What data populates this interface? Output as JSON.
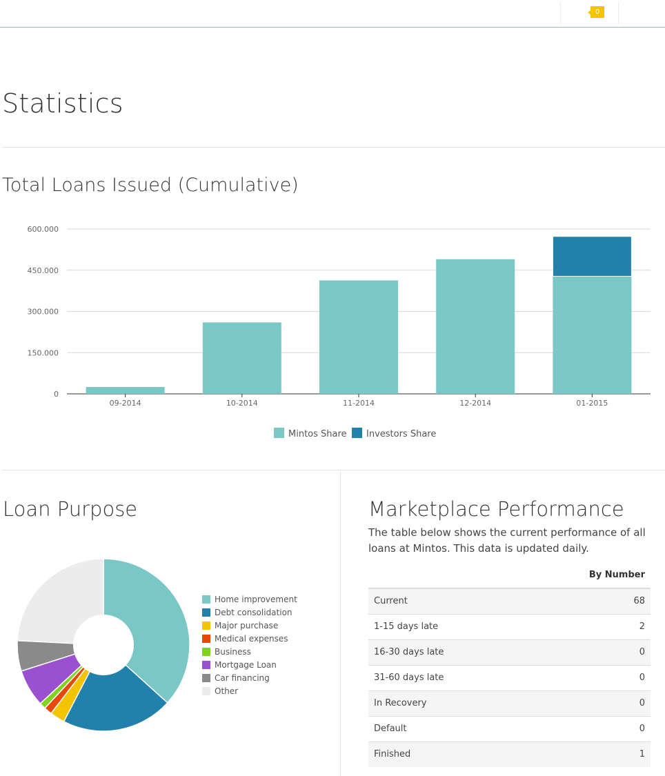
{
  "header": {
    "notification_count": "0"
  },
  "page_title": "Statistics",
  "loans_chart": {
    "title": "Total Loans Issued (Cumulative)",
    "legend": [
      {
        "label": "Mintos Share",
        "color": "#79c8c6"
      },
      {
        "label": "Investors Share",
        "color": "#2181ab"
      }
    ]
  },
  "chart_data": [
    {
      "type": "bar",
      "stacked": true,
      "title": "Total Loans Issued (Cumulative)",
      "categories": [
        "09-2014",
        "10-2014",
        "11-2014",
        "12-2014",
        "01-2015"
      ],
      "series": [
        {
          "name": "Mintos Share",
          "color": "#79c8c6",
          "values": [
            25000,
            260000,
            413000,
            490000,
            428000
          ]
        },
        {
          "name": "Investors Share",
          "color": "#2181ab",
          "values": [
            0,
            0,
            0,
            0,
            145000
          ]
        }
      ],
      "ylim": [
        0,
        600000
      ],
      "yticks": [
        0,
        150000,
        300000,
        450000,
        600000
      ],
      "ytick_labels": [
        "0",
        "150.000",
        "300.000",
        "450.000",
        "600.000"
      ],
      "grid": true,
      "legend_position": "bottom"
    },
    {
      "type": "pie",
      "donut": true,
      "title": "Loan Purpose",
      "labels": [
        "Home improvement",
        "Debt consolidation",
        "Major purchase",
        "Medical expenses",
        "Business",
        "Mortgage Loan",
        "Car financing",
        "Other"
      ],
      "colors": [
        "#79c8c6",
        "#2181ab",
        "#f5c400",
        "#e8470a",
        "#7ed321",
        "#9b51cf",
        "#8a8a8a",
        "#ececec"
      ],
      "values": [
        36.7,
        20.9,
        2.8,
        1.5,
        1.2,
        7.0,
        5.7,
        24.2
      ],
      "legend_position": "right"
    }
  ],
  "loan_purpose": {
    "title": "Loan Purpose"
  },
  "performance": {
    "title": "Marketplace Performance",
    "description": "The table below shows the current performance of all loans at Mintos. This data is updated daily.",
    "column_header": "By Number",
    "rows": [
      {
        "label": "Current",
        "value": "68"
      },
      {
        "label": "1-15 days late",
        "value": "2"
      },
      {
        "label": "16-30 days late",
        "value": "0"
      },
      {
        "label": "31-60 days late",
        "value": "0"
      },
      {
        "label": "In Recovery",
        "value": "0"
      },
      {
        "label": "Default",
        "value": "0"
      },
      {
        "label": "Finished",
        "value": "1"
      }
    ]
  }
}
